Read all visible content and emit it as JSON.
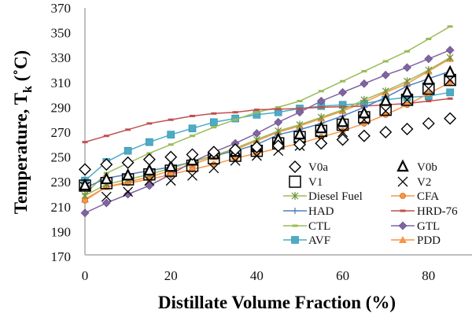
{
  "chart_data": {
    "type": "line",
    "title": "",
    "xlabel": "Distillate Volume Fraction (%)",
    "ylabel_main": "Temperature, T",
    "ylabel_sub": "k",
    "ylabel_unit": " (˚C)",
    "xlim": [
      0,
      90
    ],
    "ylim": [
      170,
      370
    ],
    "x_ticks": [
      0,
      20,
      40,
      60,
      80
    ],
    "y_ticks": [
      170,
      190,
      210,
      230,
      250,
      270,
      290,
      310,
      330,
      350,
      370
    ],
    "grid": false,
    "legend_position": "bottom-right",
    "x": [
      0,
      5,
      10,
      15,
      20,
      25,
      30,
      35,
      40,
      45,
      50,
      55,
      60,
      65,
      70,
      75,
      80,
      85
    ],
    "series": [
      {
        "name": "V0a",
        "marker": "diamond",
        "line": false,
        "color": "#000000",
        "values": [
          240,
          244,
          245.5,
          248,
          250,
          252,
          254,
          256,
          258,
          259,
          260,
          261,
          264,
          267,
          270,
          272.5,
          277,
          281
        ]
      },
      {
        "name": "V0b",
        "marker": "triangle",
        "line": false,
        "color": "#000000",
        "values": [
          227,
          232,
          235,
          239,
          242,
          247,
          252,
          254,
          258,
          264,
          268,
          273,
          278,
          285,
          295,
          302,
          312,
          318
        ]
      },
      {
        "name": "V1",
        "marker": "square",
        "line": false,
        "color": "#000000",
        "values": [
          227,
          229,
          232,
          236,
          239,
          243,
          249,
          251,
          255,
          261,
          266,
          271,
          276,
          282,
          288,
          296,
          305,
          312
        ]
      },
      {
        "name": "V2",
        "marker": "x",
        "line": false,
        "color": "#000000",
        "values": [
          226,
          218,
          222,
          231,
          231,
          235,
          241,
          247,
          251,
          255,
          259,
          264,
          270,
          280,
          287,
          296,
          305,
          312
        ]
      },
      {
        "name": "Diesel Fuel",
        "marker": "asterisk",
        "line": true,
        "color": "#9bbb59",
        "values": [
          219,
          228,
          232,
          236,
          241,
          246,
          251,
          257,
          264,
          271,
          276,
          282,
          288,
          296,
          303,
          311,
          320,
          330
        ]
      },
      {
        "name": "CFA",
        "marker": "circle",
        "line": true,
        "color": "#f79646",
        "values": [
          215,
          226,
          229,
          232,
          236,
          240,
          244,
          249,
          253,
          257,
          261,
          266,
          271,
          277,
          284,
          292,
          301,
          310
        ]
      },
      {
        "name": "HAD",
        "marker": "plus",
        "line": true,
        "color": "#4f81bd",
        "values": [
          225,
          233,
          236,
          239,
          242,
          246,
          251,
          255,
          260,
          268,
          272,
          277,
          283,
          290,
          298,
          307,
          313,
          319
        ]
      },
      {
        "name": "HRD-76",
        "marker": "dash",
        "line": true,
        "color": "#c0504d",
        "values": [
          262,
          267,
          272,
          277,
          280,
          283,
          285,
          286,
          288,
          288.5,
          289,
          290,
          290.5,
          291,
          292,
          293,
          295,
          297
        ]
      },
      {
        "name": "CTL",
        "marker": "dash",
        "line": true,
        "color": "#9bbb59",
        "values": [
          220,
          237,
          245,
          253,
          260,
          267,
          274,
          280,
          286,
          290,
          295,
          303,
          311,
          319,
          327,
          335,
          345,
          355
        ]
      },
      {
        "name": "GTL",
        "marker": "diamond-filled",
        "line": true,
        "color": "#8064a2",
        "values": [
          205,
          213,
          220,
          227,
          236,
          246,
          254,
          261,
          269,
          278,
          286,
          295,
          302,
          309,
          316,
          322,
          329,
          336
        ]
      },
      {
        "name": "AVF",
        "marker": "square-filled",
        "line": true,
        "color": "#4bacc6",
        "values": [
          231,
          246,
          255,
          262,
          268,
          273,
          278,
          281,
          284,
          286,
          289,
          291,
          292,
          293,
          296,
          298,
          299,
          302
        ]
      },
      {
        "name": "PDD",
        "marker": "triangle-filled",
        "line": true,
        "color": "#f79646",
        "values": [
          216,
          226,
          230,
          234,
          239,
          244,
          250,
          256,
          263,
          270,
          275,
          281,
          287,
          294,
          302,
          309,
          319,
          329
        ]
      }
    ]
  }
}
